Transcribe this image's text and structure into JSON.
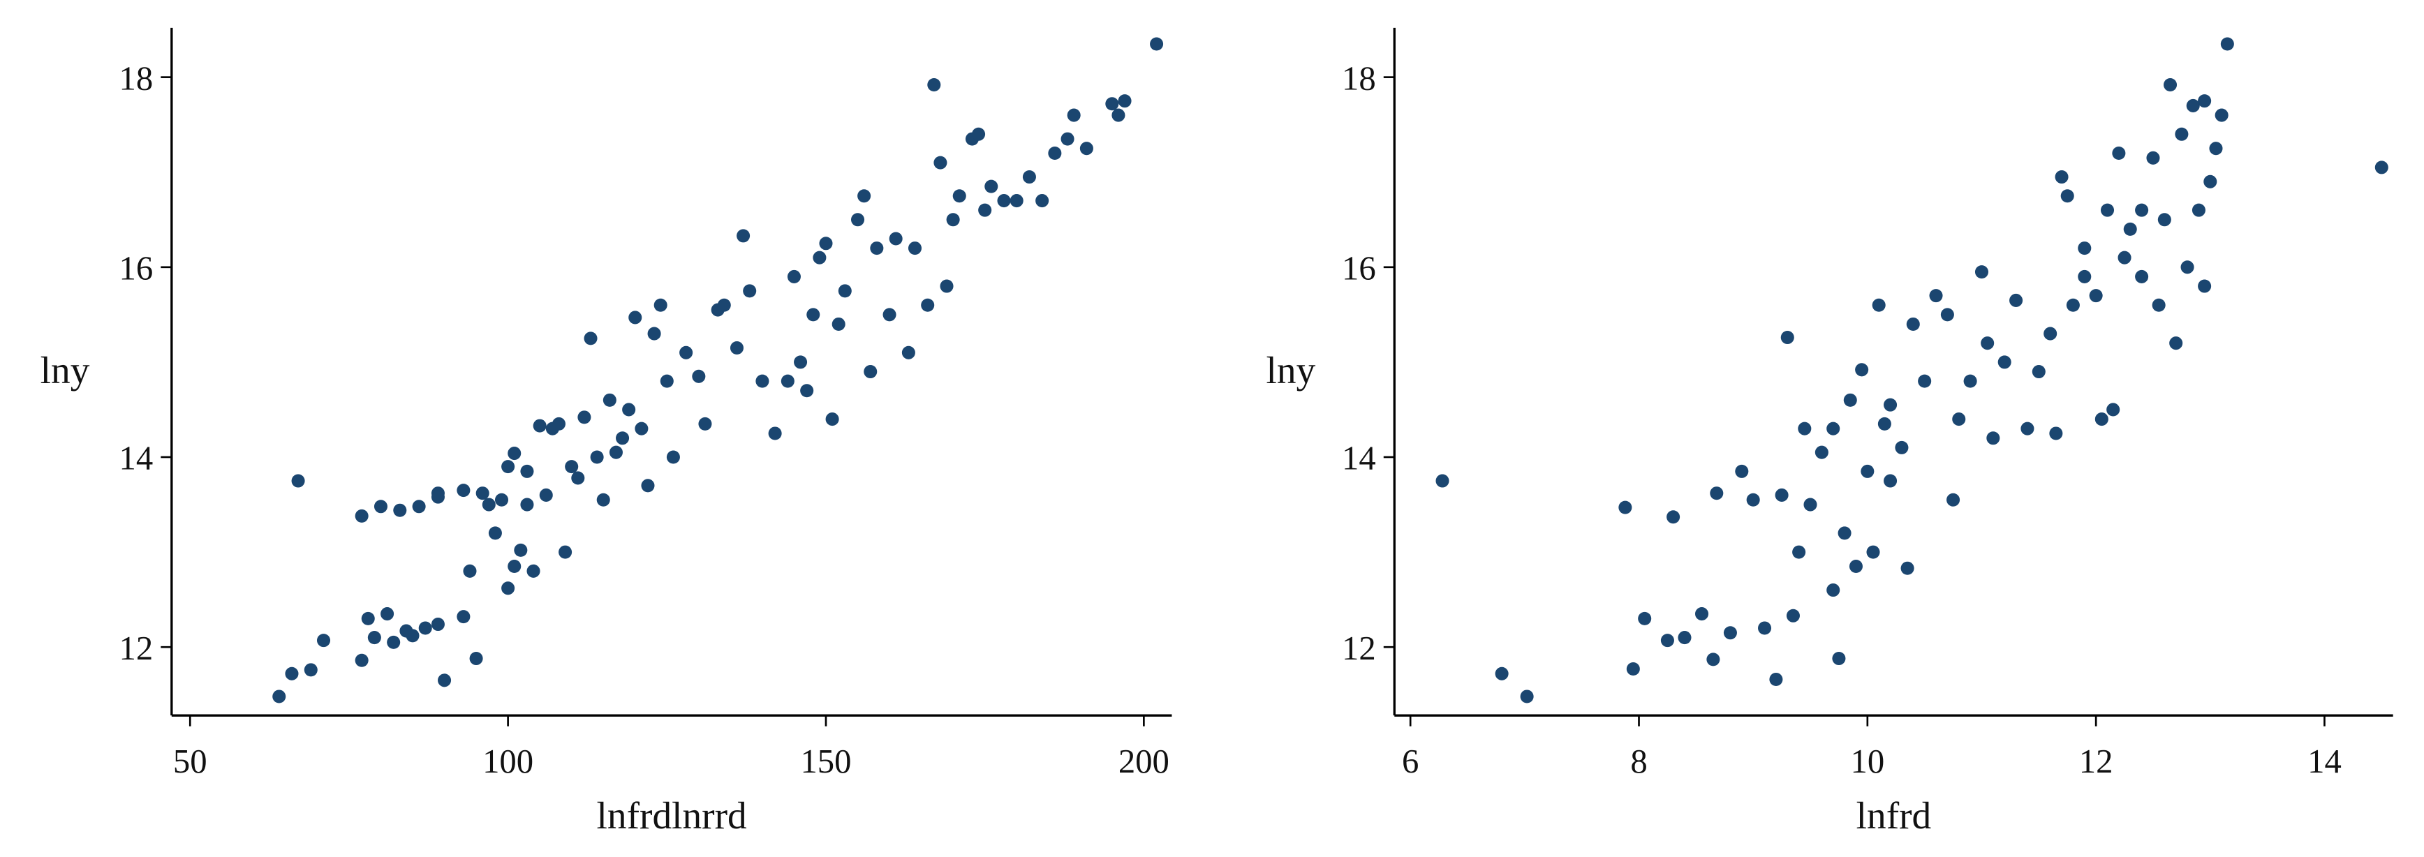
{
  "chart_data": [
    {
      "type": "scatter",
      "xlabel": "lnfrdlnrrd",
      "ylabel": "lny",
      "color": "#1b4670",
      "xlim": [
        47.1,
        204.4
      ],
      "ylim": [
        11.28,
        18.52
      ],
      "xticks": [
        50,
        100,
        150,
        200
      ],
      "yticks": [
        12,
        14,
        16,
        18
      ],
      "x": [
        64,
        66,
        67,
        69,
        71,
        77,
        77,
        78,
        79,
        80,
        81,
        82,
        83,
        84,
        85,
        86,
        87,
        89,
        89,
        89,
        90,
        93,
        93,
        94,
        95,
        96,
        97,
        98,
        99,
        100,
        100,
        101,
        101,
        102,
        103,
        103,
        104,
        105,
        106,
        107,
        108,
        109,
        110,
        111,
        112,
        113,
        114,
        115,
        116,
        117,
        118,
        119,
        120,
        121,
        122,
        123,
        124,
        125,
        126,
        128,
        130,
        131,
        133,
        134,
        136,
        137,
        138,
        140,
        142,
        144,
        145,
        146,
        147,
        148,
        149,
        150,
        151,
        152,
        153,
        155,
        156,
        157,
        158,
        160,
        161,
        163,
        164,
        166,
        167,
        168,
        169,
        170,
        171,
        173,
        174,
        175,
        176,
        178,
        180,
        182,
        184,
        186,
        188,
        189,
        191,
        195,
        196,
        197,
        202
      ],
      "y": [
        11.48,
        11.72,
        13.75,
        11.76,
        12.07,
        11.86,
        13.38,
        12.3,
        12.1,
        13.48,
        12.35,
        12.05,
        13.44,
        12.17,
        12.12,
        13.48,
        12.2,
        12.24,
        13.62,
        13.58,
        11.65,
        12.32,
        13.65,
        12.8,
        11.88,
        13.62,
        13.5,
        13.2,
        13.55,
        12.62,
        13.9,
        12.85,
        14.04,
        13.02,
        13.5,
        13.85,
        12.8,
        14.33,
        13.6,
        14.3,
        14.35,
        13.0,
        13.9,
        13.78,
        14.42,
        15.25,
        14.0,
        13.55,
        14.6,
        14.05,
        14.2,
        14.5,
        15.47,
        14.3,
        13.7,
        15.3,
        15.6,
        14.8,
        14.0,
        15.1,
        14.85,
        14.35,
        15.55,
        15.6,
        15.15,
        16.33,
        15.75,
        14.8,
        14.25,
        14.8,
        15.9,
        15.0,
        14.7,
        15.5,
        16.1,
        16.25,
        14.4,
        15.4,
        15.75,
        16.5,
        16.75,
        14.9,
        16.2,
        15.5,
        16.3,
        15.1,
        16.2,
        15.6,
        17.92,
        17.1,
        15.8,
        16.5,
        16.75,
        17.35,
        17.4,
        16.6,
        16.85,
        16.7,
        16.7,
        16.95,
        16.7,
        17.2,
        17.35,
        17.6,
        17.25,
        17.72,
        17.6,
        17.75,
        18.35
      ]
    },
    {
      "type": "scatter",
      "xlabel": "lnfrd",
      "ylabel": "lny",
      "color": "#1b4670",
      "xlim": [
        5.86,
        14.6
      ],
      "ylim": [
        11.28,
        18.52
      ],
      "xticks": [
        6,
        8,
        10,
        12,
        14
      ],
      "yticks": [
        12,
        14,
        16,
        18
      ],
      "x": [
        6.28,
        6.8,
        7.02,
        7.88,
        7.95,
        8.05,
        8.25,
        8.3,
        8.4,
        8.55,
        8.65,
        8.68,
        8.8,
        8.9,
        9.0,
        9.1,
        9.2,
        9.25,
        9.3,
        9.35,
        9.4,
        9.45,
        9.5,
        9.6,
        9.7,
        9.75,
        9.8,
        9.85,
        9.9,
        9.95,
        10.0,
        10.05,
        10.1,
        10.15,
        10.2,
        10.3,
        10.35,
        10.4,
        10.5,
        10.6,
        10.7,
        10.75,
        10.8,
        10.9,
        11.0,
        11.05,
        11.1,
        11.2,
        11.3,
        11.4,
        11.5,
        11.6,
        11.65,
        11.7,
        11.75,
        11.8,
        11.9,
        12.0,
        12.05,
        12.1,
        12.15,
        12.2,
        12.25,
        12.3,
        12.4,
        12.5,
        12.55,
        12.6,
        12.65,
        12.7,
        12.75,
        12.8,
        12.85,
        12.9,
        12.95,
        13.0,
        13.05,
        13.1,
        13.15,
        14.5,
        12.95,
        12.4,
        11.9,
        10.2,
        9.7
      ],
      "y": [
        13.75,
        11.72,
        11.48,
        13.47,
        11.77,
        12.3,
        12.07,
        13.37,
        12.1,
        12.35,
        11.87,
        13.62,
        12.15,
        13.85,
        13.55,
        12.2,
        11.66,
        13.6,
        15.26,
        12.33,
        13.0,
        14.3,
        13.5,
        14.05,
        12.6,
        11.88,
        13.2,
        14.6,
        12.85,
        14.92,
        13.85,
        13.0,
        15.6,
        14.35,
        13.75,
        14.1,
        12.83,
        15.4,
        14.8,
        15.7,
        15.5,
        13.55,
        14.4,
        14.8,
        15.95,
        15.2,
        14.2,
        15.0,
        15.65,
        14.3,
        14.9,
        15.3,
        14.25,
        16.95,
        16.75,
        15.6,
        16.2,
        15.7,
        14.4,
        16.6,
        14.5,
        17.2,
        16.1,
        16.4,
        16.6,
        17.15,
        15.6,
        16.5,
        17.92,
        15.2,
        17.4,
        16.0,
        17.7,
        16.6,
        17.75,
        16.9,
        17.25,
        17.6,
        18.35,
        17.05,
        15.8,
        15.9,
        15.9,
        14.55,
        14.3
      ]
    }
  ]
}
